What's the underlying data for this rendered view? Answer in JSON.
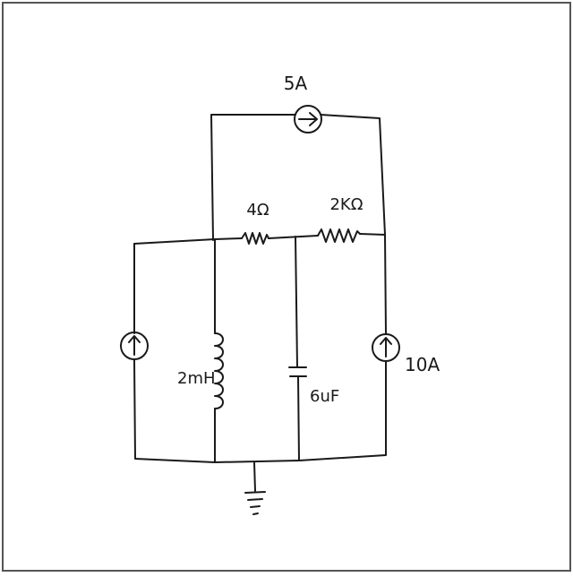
{
  "diagram": {
    "labels": {
      "source_top": "5A",
      "resistor_left": "4Ω",
      "resistor_right": "2KΩ",
      "inductor": "2mH",
      "capacitor": "6uF",
      "source_right": "10A"
    },
    "colors": {
      "ink": "#1a1a1a",
      "border": "#555555",
      "paper": "#ffffff"
    }
  }
}
